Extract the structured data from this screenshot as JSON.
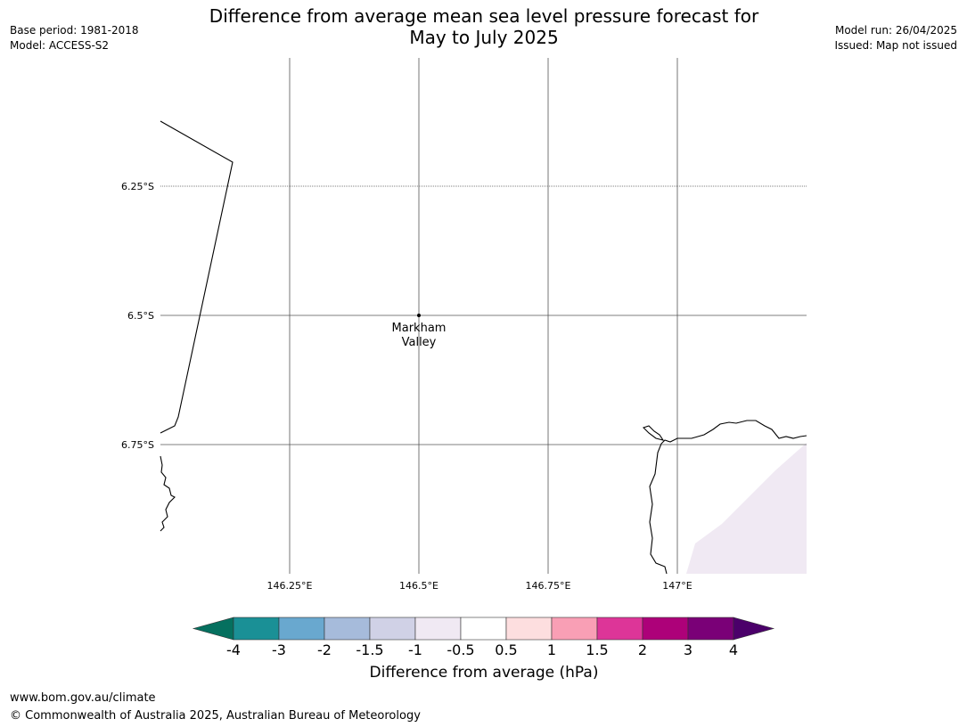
{
  "title_line1": "Difference from average mean sea level pressure forecast for",
  "title_line2": "May to July 2025",
  "meta": {
    "base_period": "Base period: 1981-2018",
    "model": "Model: ACCESS-S2",
    "model_run": "Model run: 26/04/2025",
    "issued": "Issued: Map not issued"
  },
  "map": {
    "lat_labels": [
      "6.25°S",
      "6.5°S",
      "6.75°S"
    ],
    "lon_labels": [
      "146.25°E",
      "146.5°E",
      "146.75°E",
      "147°E"
    ],
    "place": {
      "name_line1": "Markham",
      "name_line2": "Valley"
    }
  },
  "colorbar": {
    "title": "Difference from average (hPa)",
    "tick_labels": [
      "-4",
      "-3",
      "-2",
      "-1.5",
      "-1",
      "-0.5",
      "0.5",
      "1",
      "1.5",
      "2",
      "3",
      "4"
    ],
    "colors": [
      "#05705f",
      "#1a9096",
      "#69a8cf",
      "#a6bbdb",
      "#d0d1e6",
      "#f0e9f3",
      "#ffffff",
      "#fddedf",
      "#f99fb5",
      "#dd3598",
      "#ad0179",
      "#7a0077",
      "#4b006a"
    ]
  },
  "footer": {
    "url": "www.bom.gov.au/climate",
    "copyright": "© Commonwealth of Australia 2025, Australian Bureau of Meteorology"
  }
}
